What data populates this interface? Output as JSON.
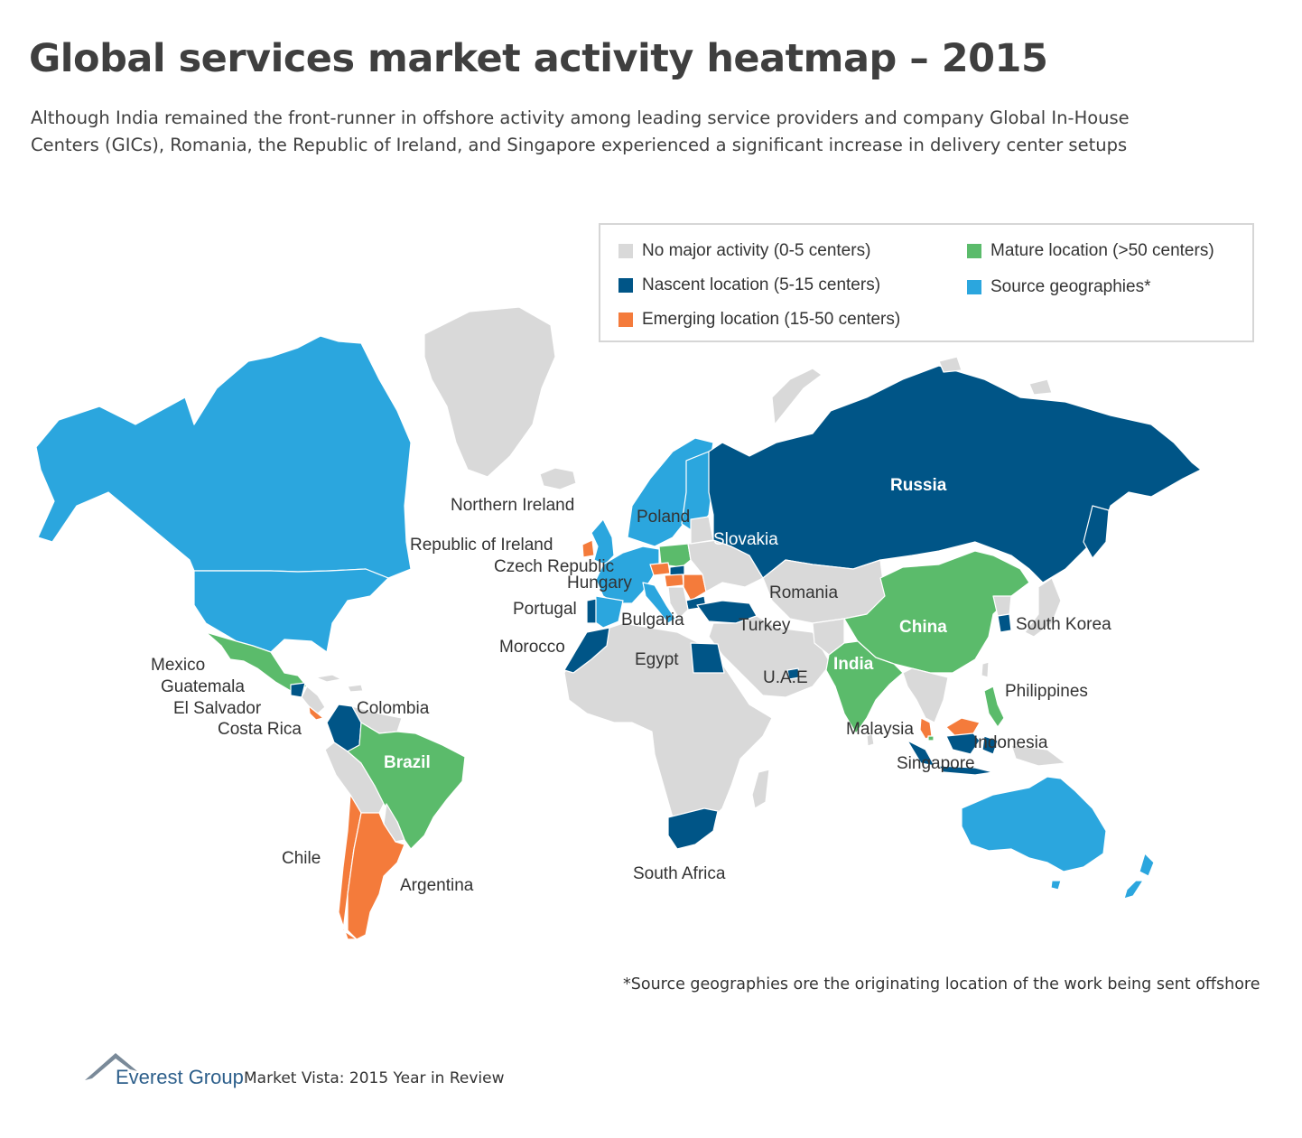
{
  "title": "Global services market activity heatmap – 2015",
  "subtitle": "Although India remained the front-runner in offshore activity among leading service providers and company Global In-House Centers (GICs), Romania, the Republic of Ireland, and Singapore experienced a significant increase in delivery center setups",
  "colors": {
    "no_activity": "#d9d9d9",
    "nascent": "#005587",
    "emerging": "#f47b3b",
    "mature": "#5bbb6b",
    "source": "#2ba6de",
    "border": "#ffffff"
  },
  "legend": {
    "items": [
      {
        "key": "no_activity",
        "label": "No major activity (0-5 centers)"
      },
      {
        "key": "nascent",
        "label": "Nascent location (5-15 centers)"
      },
      {
        "key": "emerging",
        "label": "Emerging location (15-50 centers)"
      },
      {
        "key": "mature",
        "label": "Mature location (>50 centers)"
      },
      {
        "key": "source",
        "label": "Source geographies*"
      }
    ]
  },
  "labels": {
    "russia": "Russia",
    "china": "China",
    "india": "India",
    "brazil": "Brazil",
    "northern_ireland": "Northern Ireland",
    "poland": "Poland",
    "republic_of_ireland": "Republic of Ireland",
    "slovakia": "Slovakia",
    "czech_republic": "Czech Republic",
    "hungary": "Hungary",
    "romania": "Romania",
    "portugal": "Portugal",
    "bulgaria": "Bulgaria",
    "turkey": "Turkey",
    "south_korea": "South Korea",
    "morocco": "Morocco",
    "egypt": "Egypt",
    "uae": "U.A.E",
    "philippines": "Philippines",
    "mexico": "Mexico",
    "guatemala": "Guatemala",
    "el_salvador": "El Salvador",
    "costa_rica": "Costa Rica",
    "colombia": "Colombia",
    "malaysia": "Malaysia",
    "indonesia": "Indonesia",
    "singapore": "Singapore",
    "chile": "Chile",
    "argentina": "Argentina",
    "south_africa": "South Africa"
  },
  "footnote": "*Source geographies ore the originating location of the work being sent offshore",
  "footer": {
    "brand": "Everest Group",
    "report": "Market Vista: 2015 Year in Review"
  }
}
